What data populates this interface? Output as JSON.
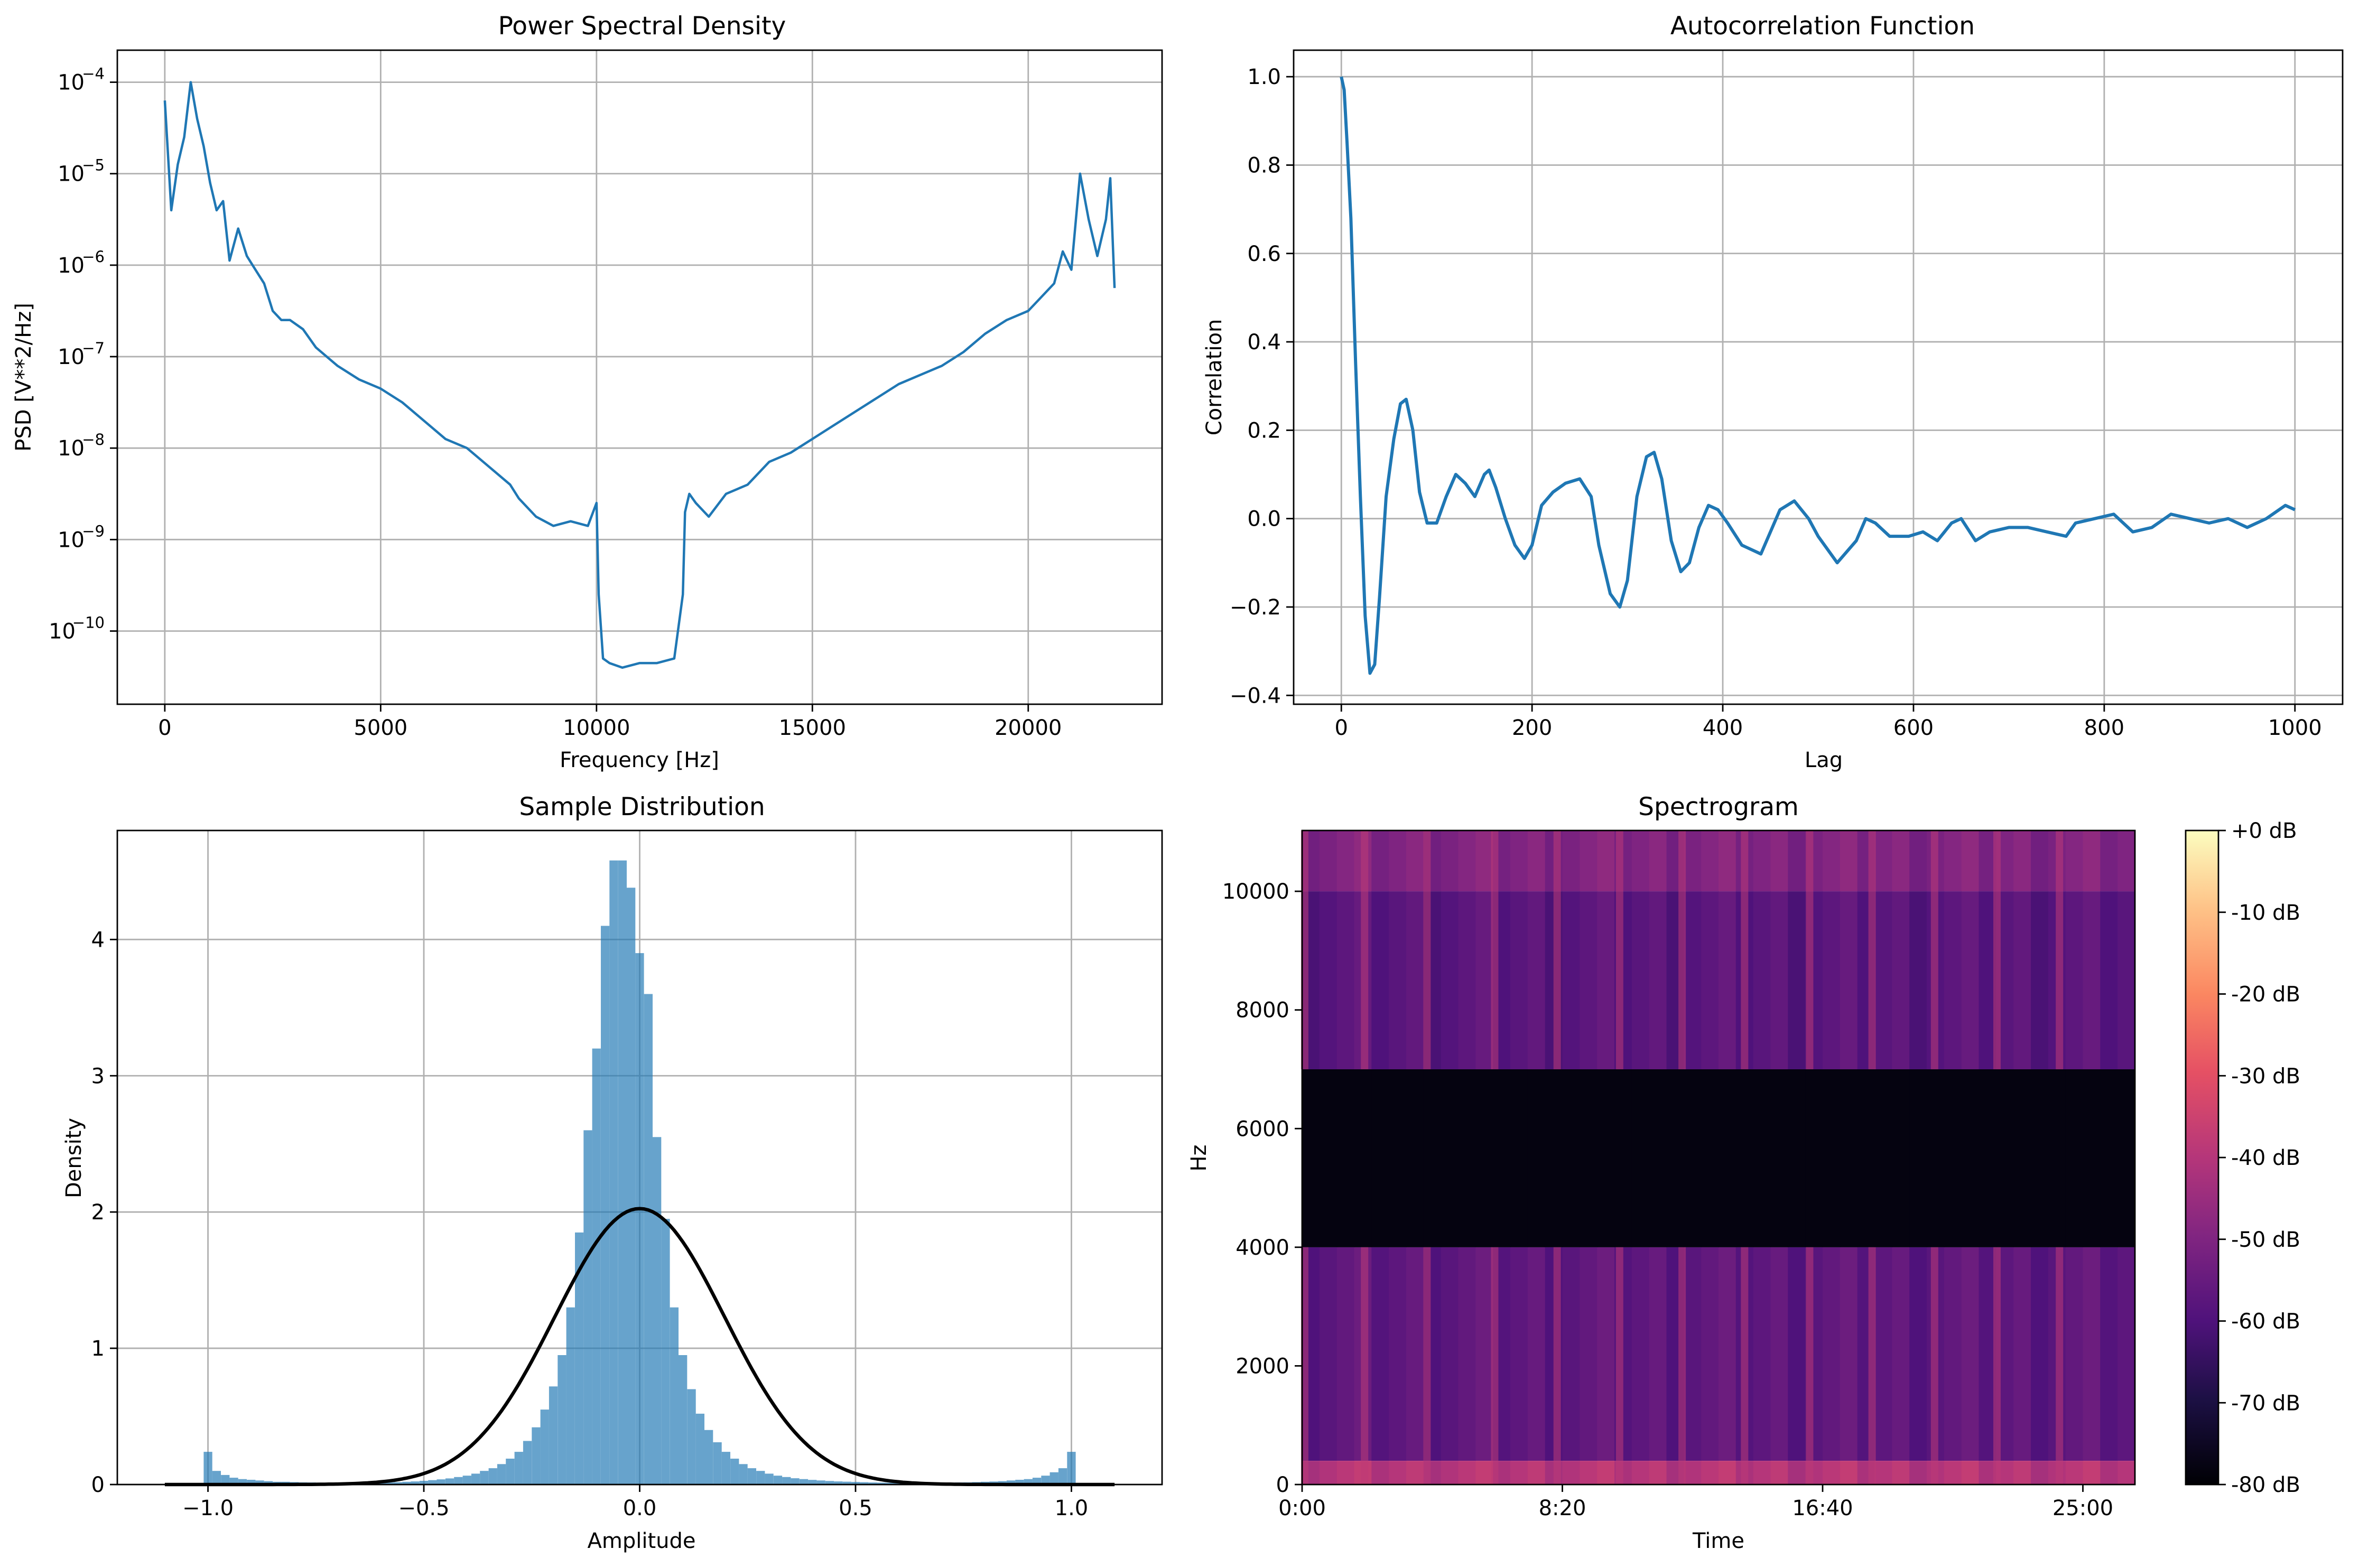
{
  "chart_data": [
    {
      "id": "psd",
      "type": "line",
      "title": "Power Spectral Density",
      "xlabel": "Frequency [Hz]",
      "ylabel": "PSD [V**2/Hz]",
      "xlim": [
        -1100,
        23100
      ],
      "ylim_log10": [
        -10.8,
        -3.65
      ],
      "yscale": "log",
      "grid": true,
      "xticks": [
        0,
        5000,
        10000,
        15000,
        20000
      ],
      "xtick_labels": [
        "0",
        "5000",
        "10000",
        "15000",
        "20000"
      ],
      "ytick_exponents": [
        -10,
        -9,
        -8,
        -7,
        -6,
        -5,
        -4
      ],
      "ytick_labels": [
        "10",
        "10",
        "10",
        "10",
        "10",
        "10",
        "10"
      ],
      "ytick_superscripts": [
        "−10",
        "−9",
        "−8",
        "−7",
        "−6",
        "−5",
        "−4"
      ],
      "color": "#1f77b4",
      "x": [
        0,
        150,
        300,
        450,
        600,
        750,
        900,
        1050,
        1200,
        1350,
        1500,
        1700,
        1900,
        2100,
        2300,
        2500,
        2700,
        2900,
        3200,
        3500,
        4000,
        4500,
        5000,
        5500,
        6000,
        6500,
        7000,
        7500,
        8000,
        8200,
        8600,
        9000,
        9400,
        9800,
        10000,
        10050,
        10150,
        10300,
        10600,
        11000,
        11400,
        11800,
        12000,
        12050,
        12150,
        12300,
        12600,
        13000,
        13500,
        14000,
        14500,
        15000,
        15500,
        16000,
        16500,
        17000,
        17500,
        18000,
        18500,
        19000,
        19500,
        20000,
        20300,
        20600,
        20800,
        21000,
        21200,
        21400,
        21600,
        21800,
        21900,
        22000
      ],
      "y_log10": [
        -4.2,
        -5.4,
        -4.9,
        -4.6,
        -4.0,
        -4.4,
        -4.7,
        -5.1,
        -5.4,
        -5.3,
        -5.95,
        -5.6,
        -5.9,
        -6.05,
        -6.2,
        -6.5,
        -6.6,
        -6.6,
        -6.7,
        -6.9,
        -7.1,
        -7.25,
        -7.35,
        -7.5,
        -7.7,
        -7.9,
        -8.0,
        -8.2,
        -8.4,
        -8.55,
        -8.75,
        -8.85,
        -8.8,
        -8.85,
        -8.6,
        -9.6,
        -10.3,
        -10.35,
        -10.4,
        -10.35,
        -10.35,
        -10.3,
        -9.6,
        -8.7,
        -8.5,
        -8.6,
        -8.75,
        -8.5,
        -8.4,
        -8.15,
        -8.05,
        -7.9,
        -7.75,
        -7.6,
        -7.45,
        -7.3,
        -7.2,
        -7.1,
        -6.95,
        -6.75,
        -6.6,
        -6.5,
        -6.35,
        -6.2,
        -5.85,
        -6.05,
        -5.0,
        -5.5,
        -5.9,
        -5.5,
        -5.05,
        -6.25
      ]
    },
    {
      "id": "acf",
      "type": "line",
      "title": "Autocorrelation Function",
      "xlabel": "Lag",
      "ylabel": "Correlation",
      "xlim": [
        -50,
        1050
      ],
      "ylim": [
        -0.42,
        1.06
      ],
      "grid": true,
      "xticks": [
        0,
        200,
        400,
        600,
        800,
        1000
      ],
      "xtick_labels": [
        "0",
        "200",
        "400",
        "600",
        "800",
        "1000"
      ],
      "yticks": [
        -0.4,
        -0.2,
        0.0,
        0.2,
        0.4,
        0.6,
        0.8,
        1.0
      ],
      "ytick_labels": [
        "−0.4",
        "−0.2",
        "0.0",
        "0.2",
        "0.4",
        "0.6",
        "0.8",
        "1.0"
      ],
      "color": "#1f77b4",
      "x": [
        0,
        3,
        6,
        10,
        15,
        20,
        25,
        30,
        35,
        40,
        47,
        55,
        62,
        68,
        75,
        82,
        90,
        100,
        110,
        120,
        130,
        140,
        150,
        155,
        162,
        172,
        182,
        192,
        200,
        210,
        222,
        235,
        250,
        262,
        270,
        282,
        292,
        300,
        310,
        320,
        328,
        336,
        346,
        356,
        365,
        375,
        385,
        395,
        405,
        420,
        440,
        460,
        475,
        490,
        500,
        520,
        540,
        550,
        560,
        575,
        595,
        610,
        625,
        640,
        650,
        665,
        680,
        700,
        720,
        740,
        760,
        770,
        790,
        810,
        830,
        850,
        870,
        890,
        910,
        930,
        950,
        970,
        990,
        1000
      ],
      "y": [
        1.0,
        0.97,
        0.85,
        0.68,
        0.35,
        0.05,
        -0.22,
        -0.35,
        -0.33,
        -0.18,
        0.05,
        0.18,
        0.26,
        0.27,
        0.2,
        0.06,
        -0.01,
        -0.01,
        0.05,
        0.1,
        0.08,
        0.05,
        0.1,
        0.11,
        0.07,
        0.0,
        -0.06,
        -0.09,
        -0.06,
        0.03,
        0.06,
        0.08,
        0.09,
        0.05,
        -0.06,
        -0.17,
        -0.2,
        -0.14,
        0.05,
        0.14,
        0.15,
        0.09,
        -0.05,
        -0.12,
        -0.1,
        -0.02,
        0.03,
        0.02,
        -0.01,
        -0.06,
        -0.08,
        0.02,
        0.04,
        0.0,
        -0.04,
        -0.1,
        -0.05,
        0.0,
        -0.01,
        -0.04,
        -0.04,
        -0.03,
        -0.05,
        -0.01,
        0.0,
        -0.05,
        -0.03,
        -0.02,
        -0.02,
        -0.03,
        -0.04,
        -0.01,
        0.0,
        0.01,
        -0.03,
        -0.02,
        0.01,
        0.0,
        -0.01,
        0.0,
        -0.02,
        0.0,
        0.03,
        0.02
      ]
    },
    {
      "id": "hist",
      "type": "bar",
      "title": "Sample Distribution",
      "xlabel": "Amplitude",
      "ylabel": "Density",
      "xlim": [
        -1.21,
        1.21
      ],
      "ylim": [
        0,
        4.8
      ],
      "grid": true,
      "xticks": [
        -1.0,
        -0.5,
        0.0,
        0.5,
        1.0
      ],
      "xtick_labels": [
        "−1.0",
        "−0.5",
        "0.0",
        "0.5",
        "1.0"
      ],
      "yticks": [
        0,
        1,
        2,
        3,
        4
      ],
      "ytick_labels": [
        "0",
        "1",
        "2",
        "3",
        "4"
      ],
      "bar_color": "#1f77b4",
      "bar_opacity": 0.68,
      "bin_width": 0.02,
      "bin_centers": [
        -1.0,
        -0.98,
        -0.96,
        -0.94,
        -0.92,
        -0.9,
        -0.88,
        -0.86,
        -0.84,
        -0.82,
        -0.8,
        -0.78,
        -0.76,
        -0.74,
        -0.72,
        -0.7,
        -0.68,
        -0.66,
        -0.64,
        -0.62,
        -0.6,
        -0.58,
        -0.56,
        -0.54,
        -0.52,
        -0.5,
        -0.48,
        -0.46,
        -0.44,
        -0.42,
        -0.4,
        -0.38,
        -0.36,
        -0.34,
        -0.32,
        -0.3,
        -0.28,
        -0.26,
        -0.24,
        -0.22,
        -0.2,
        -0.18,
        -0.16,
        -0.14,
        -0.12,
        -0.1,
        -0.08,
        -0.06,
        -0.04,
        -0.02,
        0.0,
        0.02,
        0.04,
        0.06,
        0.08,
        0.1,
        0.12,
        0.14,
        0.16,
        0.18,
        0.2,
        0.22,
        0.24,
        0.26,
        0.28,
        0.3,
        0.32,
        0.34,
        0.36,
        0.38,
        0.4,
        0.42,
        0.44,
        0.46,
        0.48,
        0.5,
        0.52,
        0.54,
        0.56,
        0.58,
        0.6,
        0.62,
        0.64,
        0.66,
        0.68,
        0.7,
        0.72,
        0.74,
        0.76,
        0.78,
        0.8,
        0.82,
        0.84,
        0.86,
        0.88,
        0.9,
        0.92,
        0.94,
        0.96,
        0.98,
        1.0
      ],
      "values": [
        0.24,
        0.1,
        0.07,
        0.05,
        0.04,
        0.035,
        0.03,
        0.025,
        0.02,
        0.02,
        0.018,
        0.016,
        0.015,
        0.014,
        0.013,
        0.012,
        0.012,
        0.012,
        0.012,
        0.013,
        0.014,
        0.015,
        0.017,
        0.02,
        0.023,
        0.027,
        0.032,
        0.038,
        0.045,
        0.055,
        0.065,
        0.08,
        0.1,
        0.12,
        0.15,
        0.19,
        0.24,
        0.32,
        0.42,
        0.55,
        0.72,
        0.95,
        1.3,
        1.85,
        2.6,
        3.2,
        4.1,
        4.58,
        4.58,
        4.38,
        3.9,
        3.6,
        2.55,
        1.95,
        1.3,
        0.95,
        0.7,
        0.52,
        0.4,
        0.31,
        0.24,
        0.19,
        0.15,
        0.12,
        0.1,
        0.08,
        0.065,
        0.055,
        0.046,
        0.04,
        0.034,
        0.03,
        0.026,
        0.023,
        0.021,
        0.019,
        0.017,
        0.015,
        0.014,
        0.013,
        0.012,
        0.012,
        0.012,
        0.012,
        0.012,
        0.013,
        0.014,
        0.015,
        0.016,
        0.018,
        0.02,
        0.022,
        0.025,
        0.03,
        0.035,
        0.04,
        0.05,
        0.065,
        0.09,
        0.12,
        0.24
      ],
      "fit_curve": {
        "type": "normal_pdf",
        "mean": 0.0,
        "std": 0.197,
        "x_range": [
          -1.1,
          1.1
        ],
        "color": "#000000"
      }
    },
    {
      "id": "spectrogram",
      "type": "heatmap",
      "title": "Spectrogram",
      "xlabel": "Time",
      "ylabel": "Hz",
      "xlim_seconds": [
        0,
        1600
      ],
      "ylim": [
        0,
        11025
      ],
      "xticks_seconds": [
        0,
        500,
        1000,
        1500
      ],
      "xtick_labels": [
        "0:00",
        "8:20",
        "16:40",
        "25:00"
      ],
      "yticks": [
        0,
        2000,
        4000,
        6000,
        8000,
        10000
      ],
      "ytick_labels": [
        "0",
        "2000",
        "4000",
        "6000",
        "8000",
        "10000"
      ],
      "colormap": "magma",
      "colorbar_ticks_db": [
        0,
        -10,
        -20,
        -30,
        -40,
        -50,
        -60,
        -70,
        -80
      ],
      "colorbar_labels": [
        "+0 dB",
        "-10 dB",
        "-20 dB",
        "-30 dB",
        "-40 dB",
        "-50 dB",
        "-60 dB",
        "-70 dB",
        "-80 dB"
      ],
      "colorbar_range_db": [
        -80,
        0
      ],
      "time_columns": 48,
      "band_levels_db": {
        "0-400 Hz": -40,
        "400-4000 Hz": -57,
        "4000-7000 Hz": -78,
        "7000-10000 Hz": -58,
        "10000-11025 Hz": -50
      },
      "bright_event_times_seconds": [
        5,
        120,
        240,
        370,
        490,
        610,
        730,
        850,
        975,
        1095,
        1215,
        1335,
        1455
      ],
      "bright_event_level_db": -38
    }
  ]
}
